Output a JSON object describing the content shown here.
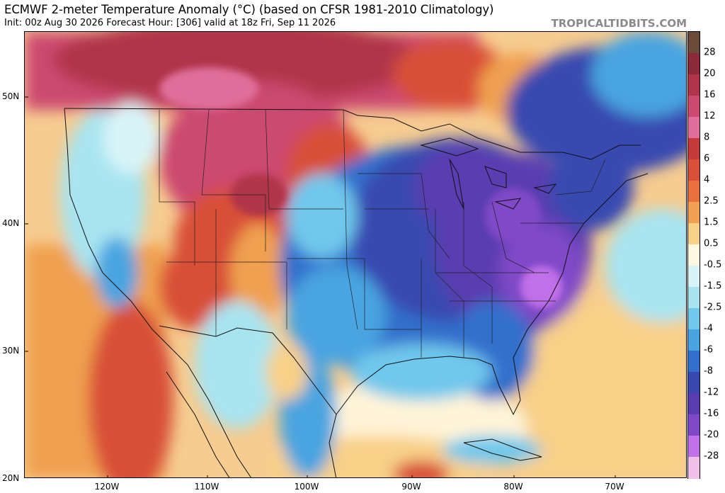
{
  "header": {
    "title": "ECMWF 2-meter Temperature Anomaly (°C) (based on CFSR 1981-2010 Climatology)",
    "subtitle": "Init: 00z Aug 30 2026   Forecast Hour: [306]   valid at 18z Fri, Sep 11 2026",
    "credit": "TROPICALTIDBITS.COM"
  },
  "axes": {
    "lat_labels": [
      "50N",
      "40N",
      "30N",
      "20N"
    ],
    "lon_labels": [
      "120W",
      "110W",
      "100W",
      "90W",
      "80W",
      "70W"
    ]
  },
  "colorbar": {
    "labels": [
      "28",
      "20",
      "16",
      "12",
      "8",
      "6",
      "4",
      "2.5",
      "1.5",
      "0.5",
      "-0.5",
      "-1.5",
      "-2.5",
      "-4",
      "-6",
      "-8",
      "-12",
      "-16",
      "-20",
      "-28"
    ],
    "colors": [
      "#6b4a3a",
      "#8c2a3c",
      "#b0344a",
      "#cc4a70",
      "#e06e9a",
      "#c23a3a",
      "#d85038",
      "#e8703c",
      "#f0a050",
      "#f8d088",
      "#fff8e0",
      "#d8f4f8",
      "#a8e4f0",
      "#70c8ec",
      "#48a4e0",
      "#3070cc",
      "#3848b0",
      "#5a3cb0",
      "#8048c8",
      "#c070e8",
      "#f0c0e8"
    ]
  },
  "map": {
    "palette": {
      "warm_strong": "#cc4a70",
      "warm": "#d85038",
      "warm_light": "#f0a050",
      "neutral": "#fff4d8",
      "cool_light": "#a8e4f0",
      "cool": "#48a4e0",
      "cold": "#3070cc",
      "colder": "#3848b0",
      "coldest": "#8048c8"
    }
  }
}
